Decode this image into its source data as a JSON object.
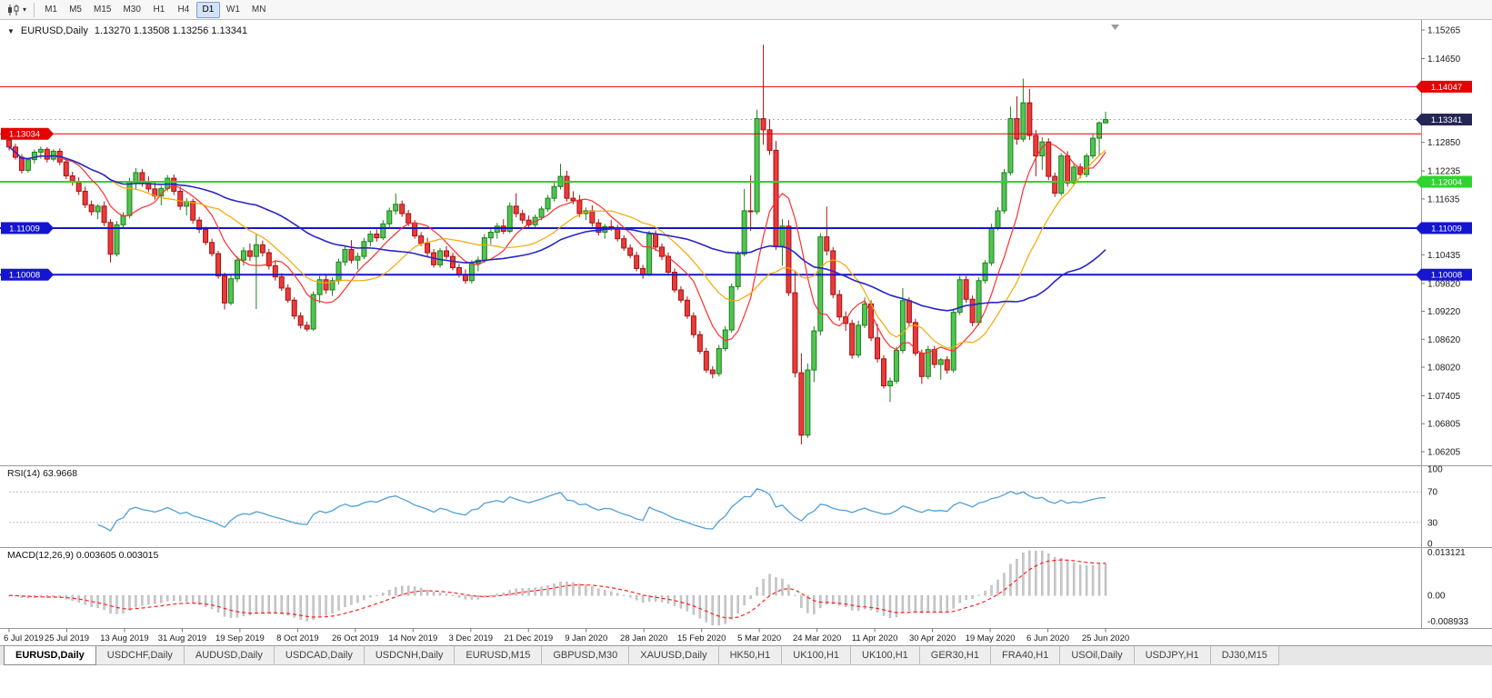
{
  "icons": {
    "selector": "▼",
    "caret": "▾"
  },
  "toolbar": {
    "timeframes": [
      "M1",
      "M5",
      "M15",
      "M30",
      "H1",
      "H4",
      "D1",
      "W1",
      "MN"
    ],
    "active_timeframe": "D1"
  },
  "chart": {
    "symbol": "EURUSD,Daily",
    "ohlc": "1.13270 1.13508 1.13256 1.13341",
    "current_price": "1.13341",
    "current_value": 1.13341,
    "current_badge_color": "#262654",
    "price_axis_ticks": [
      "1.15265",
      "1.14650",
      "1.12850",
      "1.12235",
      "1.11635",
      "1.10435",
      "1.09820",
      "1.09220",
      "1.08620",
      "1.08020",
      "1.07405",
      "1.06805",
      "1.06205"
    ],
    "colors": {
      "up": "#52c452",
      "up_edge": "#1d7f1d",
      "down": "#ea3b3b",
      "down_edge": "#a31212"
    }
  },
  "rsi_panel": {
    "header": "RSI(14) 63.9668",
    "ticks": [
      "100",
      "70",
      "30",
      "0"
    ]
  },
  "macd_panel": {
    "header": "MACD(12,26,9) 0.003605 0.003015",
    "ticks": [
      "0.013121",
      "0.00",
      "-0.008933"
    ]
  },
  "tabs": {
    "active": 0,
    "items": [
      "EURUSD,Daily",
      "USDCHF,Daily",
      "AUDUSD,Daily",
      "USDCAD,Daily",
      "USDCNH,Daily",
      "EURUSD,M15",
      "GBPUSD,M30",
      "XAUUSD,Daily",
      "HK50,H1",
      "UK100,H1",
      "UK100,H1",
      "GER30,H1",
      "FRA40,H1",
      "USOil,Daily",
      "USDJPY,H1",
      "DJ30,M15"
    ],
    "active_label": "EURUSD,Daily"
  },
  "chart_data": {
    "type": "candlestick",
    "title": "EURUSD,Daily",
    "x_labels": [
      "6 Jul 2019",
      "25 Jul 2019",
      "13 Aug 2019",
      "31 Aug 2019",
      "19 Sep 2019",
      "8 Oct 2019",
      "26 Oct 2019",
      "14 Nov 2019",
      "3 Dec 2019",
      "21 Dec 2019",
      "9 Jan 2020",
      "28 Jan 2020",
      "15 Feb 2020",
      "5 Mar 2020",
      "24 Mar 2020",
      "11 Apr 2020",
      "30 Apr 2020",
      "19 May 2020",
      "6 Jun 2020",
      "25 Jun 2020"
    ],
    "y_range_shown": [
      1.0591,
      1.154
    ],
    "current_ohlc": {
      "open": 1.1327,
      "high": 1.13508,
      "low": 1.13256,
      "close": 1.13341
    },
    "levels": [
      {
        "value": 1.14047,
        "label": "1.14047",
        "color": "#e60000",
        "width": 1,
        "badges": [
          "right"
        ]
      },
      {
        "value": 1.13034,
        "label": "1.13034",
        "color": "#e60000",
        "width": 1,
        "badges": [
          "left"
        ]
      },
      {
        "value": 1.12004,
        "label": "1.12004",
        "color": "#2ed32e",
        "width": 2,
        "badges": [
          "right"
        ]
      },
      {
        "value": 1.11009,
        "label": "1.11009",
        "color": "#1515d0",
        "width": 2,
        "badges": [
          "left",
          "right"
        ]
      },
      {
        "value": 1.10008,
        "label": "1.10008",
        "color": "#1515d0",
        "width": 2,
        "badges": [
          "left",
          "right"
        ]
      }
    ],
    "moving_averages": [
      {
        "period": 8,
        "color": "#ff2e2e"
      },
      {
        "period": 17,
        "color": "#f5a800"
      },
      {
        "period": 40,
        "color": "#2626c9"
      }
    ],
    "rsi": {
      "period": 14,
      "current": 63.9668,
      "levels": [
        100,
        70,
        30,
        0
      ]
    },
    "macd": {
      "fast": 12,
      "slow": 26,
      "signal": 9,
      "current": [
        0.003605,
        0.003015
      ]
    },
    "candles_ohlc": [
      [
        1.129,
        1.1297,
        1.1268,
        1.1275
      ],
      [
        1.1275,
        1.1282,
        1.1248,
        1.1253
      ],
      [
        1.1253,
        1.126,
        1.1218,
        1.1225
      ],
      [
        1.1225,
        1.1252,
        1.122,
        1.1248
      ],
      [
        1.1248,
        1.127,
        1.124,
        1.1264
      ],
      [
        1.1264,
        1.1276,
        1.125,
        1.127
      ],
      [
        1.127,
        1.1275,
        1.1242,
        1.1249
      ],
      [
        1.1249,
        1.127,
        1.1244,
        1.1266
      ],
      [
        1.1266,
        1.1272,
        1.1236,
        1.1243
      ],
      [
        1.1243,
        1.125,
        1.1206,
        1.1213
      ],
      [
        1.1213,
        1.1222,
        1.1192,
        1.12
      ],
      [
        1.12,
        1.121,
        1.1172,
        1.118
      ],
      [
        1.118,
        1.119,
        1.1144,
        1.1151
      ],
      [
        1.1151,
        1.116,
        1.1128,
        1.1136
      ],
      [
        1.1136,
        1.1152,
        1.112,
        1.1148
      ],
      [
        1.1148,
        1.1158,
        1.1105,
        1.1113
      ],
      [
        1.1113,
        1.112,
        1.1027,
        1.1045
      ],
      [
        1.1045,
        1.1116,
        1.104,
        1.1108
      ],
      [
        1.1108,
        1.1135,
        1.11,
        1.1128
      ],
      [
        1.1128,
        1.1209,
        1.1122,
        1.12
      ],
      [
        1.12,
        1.123,
        1.1183,
        1.122
      ],
      [
        1.122,
        1.1228,
        1.119,
        1.1197
      ],
      [
        1.1197,
        1.1212,
        1.1178,
        1.1185
      ],
      [
        1.1185,
        1.12,
        1.1162,
        1.117
      ],
      [
        1.117,
        1.1192,
        1.115,
        1.1186
      ],
      [
        1.1186,
        1.1215,
        1.118,
        1.1208
      ],
      [
        1.1208,
        1.1216,
        1.1172,
        1.118
      ],
      [
        1.118,
        1.119,
        1.114,
        1.1148
      ],
      [
        1.1148,
        1.1165,
        1.1128,
        1.1158
      ],
      [
        1.1158,
        1.1164,
        1.111,
        1.1118
      ],
      [
        1.1118,
        1.1125,
        1.109,
        1.1098
      ],
      [
        1.1098,
        1.1104,
        1.1064,
        1.107
      ],
      [
        1.107,
        1.1078,
        1.104,
        1.1046
      ],
      [
        1.1046,
        1.1052,
        1.0992,
        1.0998
      ],
      [
        1.0998,
        1.1005,
        1.0926,
        1.094
      ],
      [
        1.094,
        1.1,
        1.0935,
        1.0992
      ],
      [
        1.0992,
        1.104,
        1.0985,
        1.1032
      ],
      [
        1.1032,
        1.106,
        1.102,
        1.1052
      ],
      [
        1.1052,
        1.1068,
        1.103,
        1.104
      ],
      [
        1.104,
        1.1087,
        1.0927,
        1.1065
      ],
      [
        1.1065,
        1.1074,
        1.104,
        1.1048
      ],
      [
        1.1048,
        1.1056,
        1.1012,
        1.102
      ],
      [
        1.102,
        1.103,
        1.0988,
        1.0996
      ],
      [
        1.0996,
        1.1004,
        1.0966,
        1.0972
      ],
      [
        1.0972,
        1.098,
        1.094,
        1.0946
      ],
      [
        1.0946,
        1.0952,
        1.0905,
        1.0912
      ],
      [
        1.0912,
        1.092,
        1.0885,
        1.0892
      ],
      [
        1.0892,
        1.09,
        1.0879,
        1.0884
      ],
      [
        1.0884,
        1.0965,
        1.088,
        1.0958
      ],
      [
        1.0958,
        1.0998,
        1.094,
        1.099
      ],
      [
        1.099,
        1.1,
        1.096,
        1.0968
      ],
      [
        1.0968,
        1.0995,
        1.0955,
        1.0988
      ],
      [
        1.0988,
        1.1035,
        1.098,
        1.1028
      ],
      [
        1.1028,
        1.1062,
        1.102,
        1.1055
      ],
      [
        1.1055,
        1.1075,
        1.1025,
        1.1032
      ],
      [
        1.1032,
        1.1048,
        1.1012,
        1.104
      ],
      [
        1.104,
        1.108,
        1.1034,
        1.1072
      ],
      [
        1.1072,
        1.1095,
        1.1062,
        1.1088
      ],
      [
        1.1088,
        1.1098,
        1.1072,
        1.108
      ],
      [
        1.108,
        1.1118,
        1.1075,
        1.111
      ],
      [
        1.111,
        1.1145,
        1.1102,
        1.1138
      ],
      [
        1.1138,
        1.1175,
        1.113,
        1.1152
      ],
      [
        1.1152,
        1.116,
        1.1125,
        1.1132
      ],
      [
        1.1132,
        1.114,
        1.1105,
        1.1112
      ],
      [
        1.1112,
        1.1118,
        1.1078,
        1.1084
      ],
      [
        1.1084,
        1.1092,
        1.1062,
        1.1068
      ],
      [
        1.1068,
        1.108,
        1.104,
        1.1048
      ],
      [
        1.1048,
        1.1056,
        1.1016,
        1.1022
      ],
      [
        1.1022,
        1.1058,
        1.1016,
        1.1052
      ],
      [
        1.1052,
        1.1062,
        1.1034,
        1.104
      ],
      [
        1.104,
        1.1048,
        1.101,
        1.1016
      ],
      [
        1.1016,
        1.1024,
        1.0995,
        1.1001
      ],
      [
        1.1001,
        1.1012,
        1.0981,
        1.0988
      ],
      [
        1.0988,
        1.1032,
        1.0982,
        1.1025
      ],
      [
        1.1025,
        1.104,
        1.1008,
        1.1032
      ],
      [
        1.1032,
        1.1088,
        1.1026,
        1.108
      ],
      [
        1.108,
        1.11,
        1.1066,
        1.1092
      ],
      [
        1.1092,
        1.1112,
        1.1078,
        1.1105
      ],
      [
        1.1105,
        1.112,
        1.1088,
        1.1094
      ],
      [
        1.1094,
        1.1156,
        1.109,
        1.1148
      ],
      [
        1.1148,
        1.1176,
        1.1124,
        1.1132
      ],
      [
        1.1132,
        1.114,
        1.111,
        1.1118
      ],
      [
        1.1118,
        1.1128,
        1.11,
        1.1108
      ],
      [
        1.1108,
        1.113,
        1.1102,
        1.1124
      ],
      [
        1.1124,
        1.1148,
        1.1118,
        1.1142
      ],
      [
        1.1142,
        1.1172,
        1.1136,
        1.1165
      ],
      [
        1.1165,
        1.1198,
        1.1158,
        1.119
      ],
      [
        1.119,
        1.1239,
        1.1184,
        1.1212
      ],
      [
        1.1212,
        1.1224,
        1.1158,
        1.1165
      ],
      [
        1.1165,
        1.118,
        1.1152,
        1.116
      ],
      [
        1.116,
        1.1172,
        1.1125,
        1.1132
      ],
      [
        1.1132,
        1.1145,
        1.1118,
        1.1138
      ],
      [
        1.1138,
        1.115,
        1.1104,
        1.1112
      ],
      [
        1.1112,
        1.112,
        1.1085,
        1.1092
      ],
      [
        1.1092,
        1.111,
        1.1078,
        1.1104
      ],
      [
        1.1104,
        1.1118,
        1.1095,
        1.11
      ],
      [
        1.11,
        1.1108,
        1.1072,
        1.1078
      ],
      [
        1.1078,
        1.1086,
        1.1052,
        1.1058
      ],
      [
        1.1058,
        1.1066,
        1.1036,
        1.1042
      ],
      [
        1.1042,
        1.105,
        1.1008,
        1.1014
      ],
      [
        1.1014,
        1.1022,
        1.0992,
        1.1
      ],
      [
        1.1,
        1.1095,
        1.0998,
        1.1088
      ],
      [
        1.1088,
        1.1096,
        1.1052,
        1.106
      ],
      [
        1.106,
        1.1068,
        1.1032,
        1.104
      ],
      [
        1.104,
        1.1048,
        1.1,
        1.1006
      ],
      [
        1.1006,
        1.1014,
        1.0962,
        1.0968
      ],
      [
        1.0968,
        1.0976,
        1.094,
        1.0946
      ],
      [
        1.0946,
        1.0954,
        1.0906,
        1.0912
      ],
      [
        1.0912,
        1.092,
        1.0865,
        1.0872
      ],
      [
        1.0872,
        1.088,
        1.083,
        1.0836
      ],
      [
        1.0836,
        1.0844,
        1.079,
        1.0796
      ],
      [
        1.0796,
        1.0804,
        1.0778,
        1.0788
      ],
      [
        1.0788,
        1.085,
        1.0782,
        1.0842
      ],
      [
        1.0842,
        1.089,
        1.0836,
        1.0882
      ],
      [
        1.0882,
        1.0982,
        1.0876,
        1.0975
      ],
      [
        1.0975,
        1.1052,
        1.0968,
        1.1045
      ],
      [
        1.1045,
        1.1185,
        1.104,
        1.1138
      ],
      [
        1.1138,
        1.1214,
        1.1095,
        1.1136
      ],
      [
        1.1136,
        1.1355,
        1.113,
        1.1336
      ],
      [
        1.1336,
        1.1495,
        1.128,
        1.1312
      ],
      [
        1.1312,
        1.1334,
        1.1258,
        1.1268
      ],
      [
        1.1268,
        1.1288,
        1.1054,
        1.1062
      ],
      [
        1.1062,
        1.112,
        1.102,
        1.1105
      ],
      [
        1.1105,
        1.1118,
        1.0955,
        1.0962
      ],
      [
        1.0962,
        1.101,
        1.078,
        1.079
      ],
      [
        1.079,
        1.0832,
        1.0636,
        1.0656
      ],
      [
        1.0656,
        1.081,
        1.065,
        1.0796
      ],
      [
        1.0796,
        1.089,
        1.077,
        1.088
      ],
      [
        1.088,
        1.109,
        1.087,
        1.1082
      ],
      [
        1.1082,
        1.1147,
        1.1042,
        1.1052
      ],
      [
        1.1052,
        1.106,
        1.095,
        1.0958
      ],
      [
        1.0958,
        1.0968,
        1.0902,
        1.091
      ],
      [
        1.091,
        1.0922,
        1.088,
        1.0896
      ],
      [
        1.0896,
        1.0904,
        1.082,
        1.0828
      ],
      [
        1.0828,
        1.0902,
        1.0822,
        1.0892
      ],
      [
        1.0892,
        1.0952,
        1.0886,
        1.0938
      ],
      [
        1.0938,
        1.0946,
        1.0858,
        1.0865
      ],
      [
        1.0865,
        1.0895,
        1.0812,
        1.082
      ],
      [
        1.082,
        1.0828,
        1.0756,
        1.0762
      ],
      [
        1.0762,
        1.078,
        1.0727,
        1.0772
      ],
      [
        1.0772,
        1.0846,
        1.0766,
        1.0838
      ],
      [
        1.0838,
        1.0972,
        1.0832,
        1.0945
      ],
      [
        1.0945,
        1.0952,
        1.089,
        1.0898
      ],
      [
        1.0898,
        1.0906,
        1.0826,
        1.0832
      ],
      [
        1.0832,
        1.084,
        1.0766,
        1.0782
      ],
      [
        1.0782,
        1.0848,
        1.0776,
        1.084
      ],
      [
        1.084,
        1.0848,
        1.08,
        1.0808
      ],
      [
        1.0808,
        1.0822,
        1.0775,
        1.0818
      ],
      [
        1.0818,
        1.0826,
        1.0788,
        1.0796
      ],
      [
        1.0796,
        1.0928,
        1.079,
        1.092
      ],
      [
        1.092,
        1.0998,
        1.0914,
        1.099
      ],
      [
        1.099,
        1.0998,
        1.094,
        1.0948
      ],
      [
        1.0948,
        1.0956,
        1.089,
        1.0898
      ],
      [
        1.0898,
        1.0995,
        1.0892,
        1.0988
      ],
      [
        1.0988,
        1.1032,
        1.0982,
        1.1026
      ],
      [
        1.1026,
        1.111,
        1.102,
        1.1102
      ],
      [
        1.1102,
        1.1146,
        1.1096,
        1.1138
      ],
      [
        1.1138,
        1.1228,
        1.1132,
        1.122
      ],
      [
        1.122,
        1.1362,
        1.1214,
        1.1336
      ],
      [
        1.1336,
        1.1384,
        1.128,
        1.1292
      ],
      [
        1.1292,
        1.1422,
        1.1286,
        1.137
      ],
      [
        1.137,
        1.14,
        1.129,
        1.13
      ],
      [
        1.13,
        1.1312,
        1.1212,
        1.1256
      ],
      [
        1.1256,
        1.1296,
        1.1226,
        1.1286
      ],
      [
        1.1286,
        1.1294,
        1.1204,
        1.1212
      ],
      [
        1.1212,
        1.122,
        1.1168,
        1.1176
      ],
      [
        1.1176,
        1.1262,
        1.117,
        1.1256
      ],
      [
        1.1256,
        1.1266,
        1.119,
        1.1198
      ],
      [
        1.1198,
        1.124,
        1.1192,
        1.1232
      ],
      [
        1.1232,
        1.124,
        1.1208,
        1.1216
      ],
      [
        1.1216,
        1.1262,
        1.121,
        1.1256
      ],
      [
        1.1256,
        1.1302,
        1.125,
        1.1294
      ],
      [
        1.1294,
        1.133,
        1.1256,
        1.1327
      ],
      [
        1.1327,
        1.1351,
        1.1326,
        1.1334
      ]
    ]
  }
}
